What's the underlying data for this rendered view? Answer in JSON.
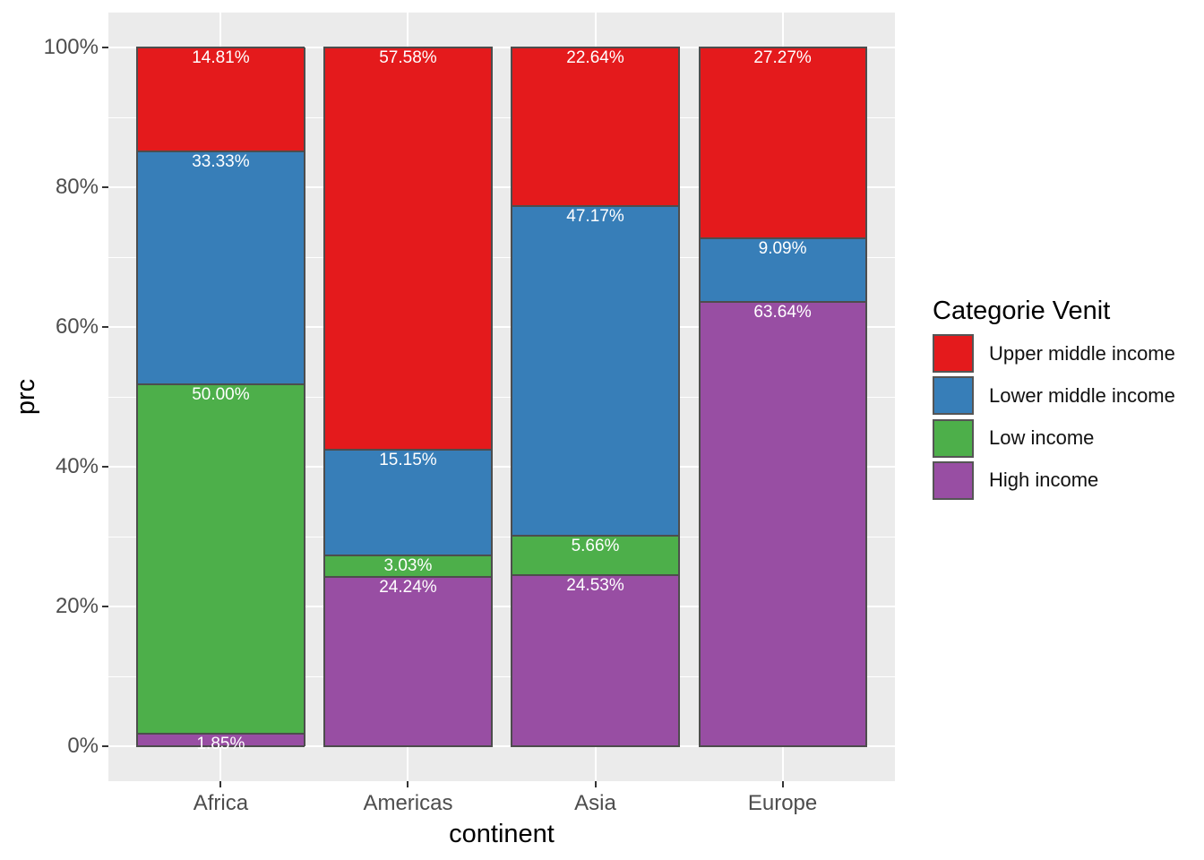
{
  "chart_data": {
    "type": "bar",
    "stacked": true,
    "title": "",
    "xlabel": "continent",
    "ylabel": "prc",
    "categories": [
      "Africa",
      "Americas",
      "Asia",
      "Europe"
    ],
    "stack_order": "bottom-to-top",
    "series": [
      {
        "name": "High income",
        "color": "#984EA3",
        "values": [
          1.85,
          24.24,
          24.53,
          63.64
        ],
        "labels": [
          "1.85%",
          "24.24%",
          "24.53%",
          "63.64%"
        ]
      },
      {
        "name": "Low income",
        "color": "#4DAF4A",
        "values": [
          50.0,
          3.03,
          5.66,
          0
        ],
        "labels": [
          "50.00%",
          "3.03%",
          "5.66%",
          ""
        ]
      },
      {
        "name": "Lower middle income",
        "color": "#377EB8",
        "values": [
          33.33,
          15.15,
          47.17,
          9.09
        ],
        "labels": [
          "33.33%",
          "15.15%",
          "47.17%",
          "9.09%"
        ]
      },
      {
        "name": "Upper middle income",
        "color": "#E41A1C",
        "values": [
          14.81,
          57.58,
          22.64,
          27.27
        ],
        "labels": [
          "14.81%",
          "57.58%",
          "22.64%",
          "27.27%"
        ]
      }
    ],
    "ylim": [
      0,
      100
    ],
    "y_ticks": [
      {
        "value": 0,
        "label": "0%"
      },
      {
        "value": 20,
        "label": "20%"
      },
      {
        "value": 40,
        "label": "40%"
      },
      {
        "value": 60,
        "label": "60%"
      },
      {
        "value": 80,
        "label": "80%"
      },
      {
        "value": 100,
        "label": "100%"
      }
    ],
    "grid": true,
    "legend": {
      "title": "Categorie Venit",
      "position": "right",
      "entries": [
        {
          "label": "Upper middle income",
          "color": "#E41A1C"
        },
        {
          "label": "Lower middle income",
          "color": "#377EB8"
        },
        {
          "label": "Low income",
          "color": "#4DAF4A"
        },
        {
          "label": "High income",
          "color": "#984EA3"
        }
      ]
    }
  },
  "colors": {
    "panel_background": "#EBEBEB",
    "gridline": "#FFFFFF",
    "bar_border": "#4D4D4D",
    "tick_mark": "#333333",
    "tick_label": "#4D4D4D",
    "axis_title": "#000000",
    "bar_label": "#FFFFFF"
  }
}
